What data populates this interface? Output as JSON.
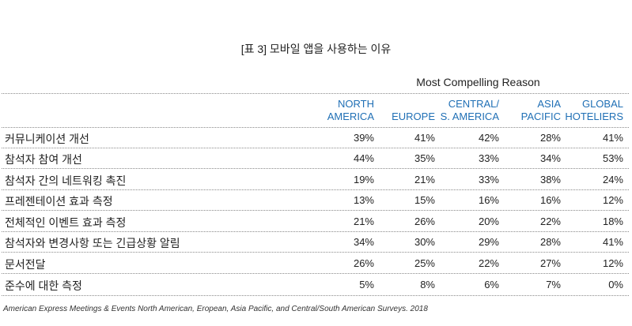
{
  "caption": "[표 3] 모바일 앱을 사용하는 이유",
  "group_title": "Most Compelling Reason",
  "columns": [
    {
      "line1": "NORTH",
      "line2": "AMERICA"
    },
    {
      "line1": "",
      "line2": "EUROPE"
    },
    {
      "line1": "CENTRAL/",
      "line2": "S. AMERICA"
    },
    {
      "line1": "ASIA",
      "line2": "PACIFIC"
    },
    {
      "line1": "GLOBAL",
      "line2": "HOTELIERS"
    }
  ],
  "rows": [
    {
      "label": "커뮤니케이션 개선",
      "values": [
        "39%",
        "41%",
        "42%",
        "28%",
        "41%"
      ]
    },
    {
      "label": "참석자 참여 개선",
      "values": [
        "44%",
        "35%",
        "33%",
        "34%",
        "53%"
      ]
    },
    {
      "label": "참석자 간의 네트워킹 촉진",
      "values": [
        "19%",
        "21%",
        "33%",
        "38%",
        "24%"
      ]
    },
    {
      "label": "프레젠테이션 효과 측정",
      "values": [
        "13%",
        "15%",
        "16%",
        "16%",
        "12%"
      ]
    },
    {
      "label": "전체적인 이벤트 효과 측정",
      "values": [
        "21%",
        "26%",
        "20%",
        "22%",
        "18%"
      ]
    },
    {
      "label": "참석자와 변경사항 또는 긴급상황 알림",
      "values": [
        "34%",
        "30%",
        "29%",
        "28%",
        "41%"
      ]
    },
    {
      "label": "문서전달",
      "values": [
        "26%",
        "25%",
        "22%",
        "27%",
        "12%"
      ]
    },
    {
      "label": "준수에 대한 측정",
      "values": [
        "5%",
        "8%",
        "6%",
        "7%",
        "0%"
      ]
    }
  ],
  "footer": "American Express Meetings & Events North American, Eropean, Asia Pacific, and Central/South American Surveys. 2018"
}
